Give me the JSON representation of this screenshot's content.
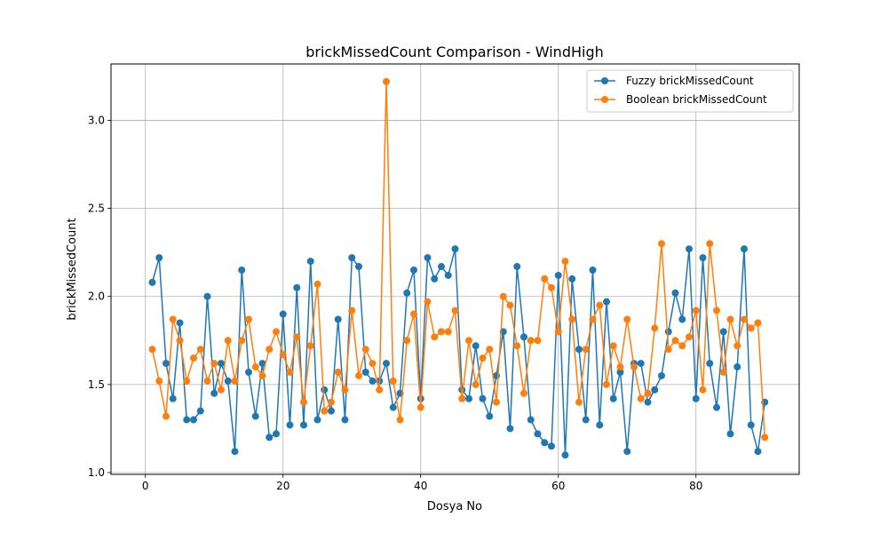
{
  "chart_data": {
    "type": "line",
    "title": "brickMissedCount Comparison - WindHigh",
    "xlabel": "Dosya No",
    "ylabel": "brickMissedCount",
    "xlim": [
      -5,
      95
    ],
    "ylim": [
      0.99,
      3.32
    ],
    "xticks": [
      0,
      20,
      40,
      60,
      80
    ],
    "yticks": [
      1.0,
      1.5,
      2.0,
      2.5,
      3.0
    ],
    "ytick_labels": [
      "1.0",
      "1.5",
      "2.0",
      "2.5",
      "3.0"
    ],
    "grid": true,
    "legend_position": "top-right",
    "marker": "circle",
    "x": [
      1,
      2,
      3,
      4,
      5,
      6,
      7,
      8,
      9,
      10,
      11,
      12,
      13,
      14,
      15,
      16,
      17,
      18,
      19,
      20,
      21,
      22,
      23,
      24,
      25,
      26,
      27,
      28,
      29,
      30,
      31,
      32,
      33,
      34,
      35,
      36,
      37,
      38,
      39,
      40,
      41,
      42,
      43,
      44,
      45,
      46,
      47,
      48,
      49,
      50,
      51,
      52,
      53,
      54,
      55,
      56,
      57,
      58,
      59,
      60,
      61,
      62,
      63,
      64,
      65,
      66,
      67,
      68,
      69,
      70,
      71,
      72,
      73,
      74,
      75,
      76,
      77,
      78,
      79,
      80,
      81,
      82,
      83,
      84,
      85,
      86,
      87,
      88,
      89,
      90
    ],
    "series": [
      {
        "name": "Fuzzy brickMissedCount",
        "color": "#1f77b4",
        "values": [
          2.08,
          2.22,
          1.62,
          1.42,
          1.85,
          1.3,
          1.3,
          1.35,
          2.0,
          1.45,
          1.62,
          1.52,
          1.12,
          2.15,
          1.57,
          1.32,
          1.62,
          1.2,
          1.22,
          1.9,
          1.27,
          2.05,
          1.27,
          2.2,
          1.3,
          1.47,
          1.35,
          1.87,
          1.3,
          2.22,
          2.17,
          1.57,
          1.52,
          1.52,
          1.62,
          1.37,
          1.45,
          2.02,
          2.15,
          1.42,
          2.22,
          2.1,
          2.17,
          2.12,
          2.27,
          1.47,
          1.42,
          1.72,
          1.42,
          1.32,
          1.55,
          1.8,
          1.25,
          2.17,
          1.77,
          1.3,
          1.22,
          1.17,
          1.15,
          2.12,
          1.1,
          2.1,
          1.7,
          1.3,
          2.15,
          1.27,
          1.97,
          1.42,
          1.57,
          1.12,
          1.62,
          1.62,
          1.4,
          1.47,
          1.55,
          1.8,
          2.02,
          1.87,
          2.27,
          1.42,
          2.22,
          1.62,
          1.37,
          1.8,
          1.22,
          1.6,
          2.27,
          1.27,
          1.12,
          1.4
        ]
      },
      {
        "name": "Boolean brickMissedCount",
        "color": "#ff7f0e",
        "values": [
          1.7,
          1.52,
          1.32,
          1.87,
          1.75,
          1.52,
          1.65,
          1.7,
          1.52,
          1.62,
          1.47,
          1.75,
          1.52,
          1.75,
          1.87,
          1.6,
          1.55,
          1.7,
          1.8,
          1.67,
          1.57,
          1.77,
          1.4,
          1.72,
          2.07,
          1.35,
          1.4,
          1.57,
          1.47,
          1.92,
          1.55,
          1.7,
          1.62,
          1.47,
          3.22,
          1.52,
          1.3,
          1.75,
          1.9,
          1.37,
          1.97,
          1.77,
          1.8,
          1.8,
          1.92,
          1.42,
          1.75,
          1.5,
          1.65,
          1.7,
          1.4,
          2.0,
          1.95,
          1.72,
          1.45,
          1.75,
          1.75,
          2.1,
          2.05,
          1.8,
          2.2,
          1.87,
          1.4,
          1.7,
          1.87,
          1.95,
          1.5,
          1.72,
          1.6,
          1.87,
          1.6,
          1.42,
          1.45,
          1.82,
          2.3,
          1.7,
          1.75,
          1.72,
          1.77,
          1.92,
          1.47,
          2.3,
          1.92,
          1.57,
          1.87,
          1.72,
          1.87,
          1.82,
          1.85,
          1.2
        ]
      }
    ]
  }
}
